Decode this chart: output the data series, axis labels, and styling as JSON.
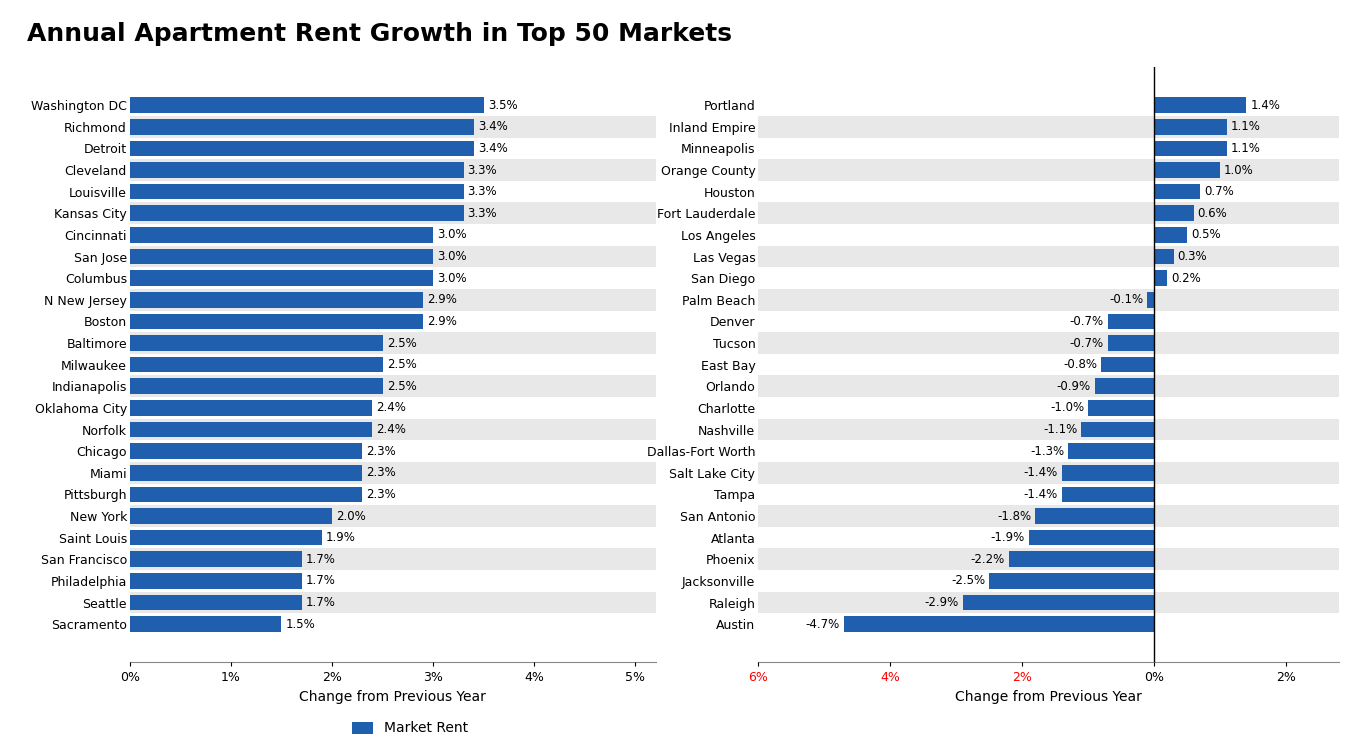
{
  "title": "Annual Apartment Rent Growth in Top 50 Markets",
  "title_fontsize": 18,
  "bar_color": "#1F5FAD",
  "background_color": "#FFFFFF",
  "legend_label": "Market Rent",
  "left_markets": [
    "Washington DC",
    "Richmond",
    "Detroit",
    "Cleveland",
    "Louisville",
    "Kansas City",
    "Cincinnati",
    "San Jose",
    "Columbus",
    "N New Jersey",
    "Boston",
    "Baltimore",
    "Milwaukee",
    "Indianapolis",
    "Oklahoma City",
    "Norfolk",
    "Chicago",
    "Miami",
    "Pittsburgh",
    "New York",
    "Saint Louis",
    "San Francisco",
    "Philadelphia",
    "Seattle",
    "Sacramento"
  ],
  "left_values": [
    3.5,
    3.4,
    3.4,
    3.3,
    3.3,
    3.3,
    3.0,
    3.0,
    3.0,
    2.9,
    2.9,
    2.5,
    2.5,
    2.5,
    2.4,
    2.4,
    2.3,
    2.3,
    2.3,
    2.0,
    1.9,
    1.7,
    1.7,
    1.7,
    1.5
  ],
  "left_xlim": [
    0,
    5.2
  ],
  "left_xticks": [
    0,
    1,
    2,
    3,
    4,
    5
  ],
  "left_xtick_labels": [
    "0%",
    "1%",
    "2%",
    "3%",
    "4%",
    "5%"
  ],
  "left_xlabel": "Change from Previous Year",
  "right_markets": [
    "Portland",
    "Inland Empire",
    "Minneapolis",
    "Orange County",
    "Houston",
    "Fort Lauderdale",
    "Los Angeles",
    "Las Vegas",
    "San Diego",
    "Palm Beach",
    "Denver",
    "Tucson",
    "East Bay",
    "Orlando",
    "Charlotte",
    "Nashville",
    "Dallas-Fort Worth",
    "Salt Lake City",
    "Tampa",
    "San Antonio",
    "Atlanta",
    "Phoenix",
    "Jacksonville",
    "Raleigh",
    "Austin"
  ],
  "right_values": [
    1.4,
    1.1,
    1.1,
    1.0,
    0.7,
    0.6,
    0.5,
    0.3,
    0.2,
    -0.1,
    -0.7,
    -0.7,
    -0.8,
    -0.9,
    -1.0,
    -1.1,
    -1.3,
    -1.4,
    -1.4,
    -1.8,
    -1.9,
    -2.2,
    -2.5,
    -2.9,
    -4.7
  ],
  "right_xlim": [
    -5.5,
    2.8
  ],
  "right_xticks": [
    -6,
    -4,
    -2,
    0,
    2
  ],
  "right_xtick_labels": [
    "6%",
    "4%",
    "2%",
    "0%",
    "2%"
  ],
  "right_xtick_colors": [
    "red",
    "red",
    "red",
    "black",
    "black"
  ],
  "right_xlabel": "Change from Previous Year",
  "stripe_color_odd": "#E8E8E8",
  "stripe_color_even": "#FFFFFF"
}
